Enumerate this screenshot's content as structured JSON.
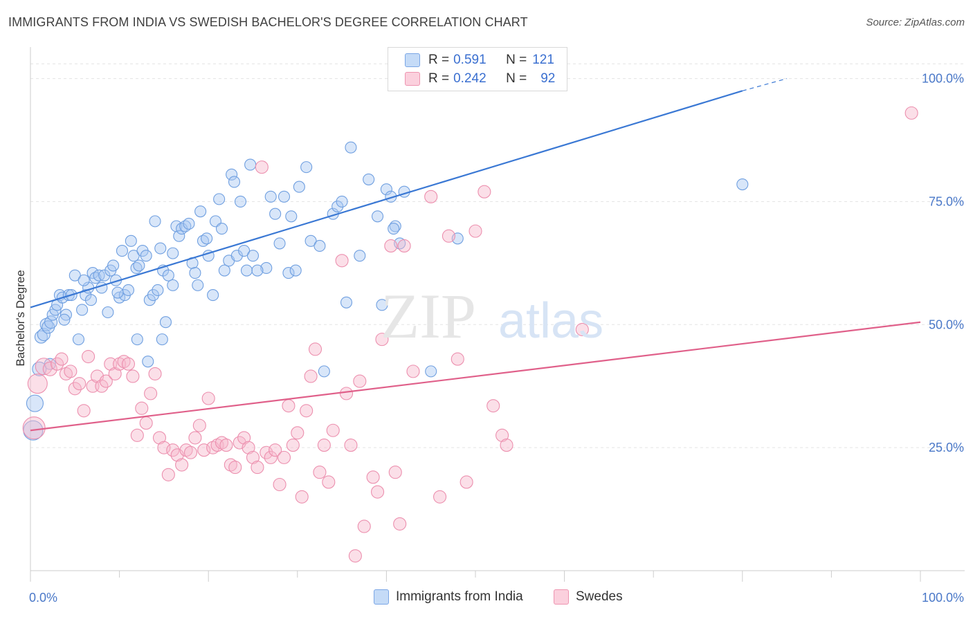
{
  "header": {
    "title": "IMMIGRANTS FROM INDIA VS SWEDISH BACHELOR'S DEGREE CORRELATION CHART",
    "source": "Source: ZipAtlas.com"
  },
  "watermark": {
    "part1": "ZIP",
    "part2": "atlas"
  },
  "legend_top": {
    "rows": [
      {
        "r_label": "R = ",
        "r_value": "0.591",
        "n_label": "N = ",
        "n_value": "121",
        "color": "#9dc0f0"
      },
      {
        "r_label": "R = ",
        "r_value": "0.242",
        "n_label": "N = ",
        "n_value": "92",
        "color": "#f5a9c0"
      }
    ]
  },
  "legend_bottom": {
    "items": [
      {
        "label": "Immigrants from India",
        "color": "#9dc0f0"
      },
      {
        "label": "Swedes",
        "color": "#f5a9c0"
      }
    ]
  },
  "chart_data": {
    "type": "scatter",
    "title": "IMMIGRANTS FROM INDIA VS SWEDISH BACHELOR'S DEGREE CORRELATION CHART",
    "xlabel": "",
    "ylabel": "Bachelor's Degree",
    "xlim": [
      0,
      100
    ],
    "ylim": [
      0,
      105
    ],
    "x_tick_labels": [
      "0.0%",
      "100.0%"
    ],
    "y_ticks": [
      25,
      50,
      75,
      100
    ],
    "y_tick_labels": [
      "25.0%",
      "50.0%",
      "75.0%",
      "100.0%"
    ],
    "grid": true,
    "legend_position": "top-center",
    "series": [
      {
        "name": "Immigrants from India",
        "color": "#3a78d4",
        "fill": "#a9c8f2",
        "r": 0.591,
        "n": 121,
        "trend": {
          "x0": 0,
          "y0": 53.5,
          "x1": 80,
          "y1": 97.5,
          "dash_x1": 85,
          "dash_y1": 100
        },
        "points": [
          [
            0.3,
            28.5,
            14
          ],
          [
            0.5,
            34,
            12
          ],
          [
            1,
            41,
            10
          ],
          [
            1.2,
            47.5,
            9
          ],
          [
            1.5,
            48,
            9
          ],
          [
            1.8,
            50,
            9
          ],
          [
            2,
            49.5,
            9
          ],
          [
            2.3,
            50.5,
            9
          ],
          [
            2.5,
            52,
            8
          ],
          [
            2.8,
            53,
            8
          ],
          [
            3,
            54,
            8
          ],
          [
            3.3,
            56,
            8
          ],
          [
            3.6,
            55.5,
            8
          ],
          [
            4,
            52,
            8
          ],
          [
            4.3,
            56,
            8
          ],
          [
            4.6,
            56,
            8
          ],
          [
            5,
            60,
            8
          ],
          [
            5.4,
            47,
            8
          ],
          [
            5.8,
            53,
            8
          ],
          [
            6.2,
            56,
            8
          ],
          [
            6.5,
            57.5,
            8
          ],
          [
            6.8,
            55,
            8
          ],
          [
            7,
            60.5,
            8
          ],
          [
            7.3,
            59.5,
            8
          ],
          [
            7.7,
            60,
            8
          ],
          [
            8,
            57.5,
            8
          ],
          [
            8.3,
            60,
            8
          ],
          [
            8.7,
            52.5,
            8
          ],
          [
            9,
            61,
            8
          ],
          [
            9.3,
            62,
            8
          ],
          [
            9.6,
            59,
            8
          ],
          [
            10,
            55.5,
            8
          ],
          [
            10.3,
            65,
            8
          ],
          [
            10.6,
            56,
            8
          ],
          [
            11,
            57,
            8
          ],
          [
            11.3,
            67,
            8
          ],
          [
            11.6,
            64,
            8
          ],
          [
            11.9,
            61.5,
            8
          ],
          [
            12.2,
            62,
            8
          ],
          [
            12.6,
            65,
            8
          ],
          [
            13,
            64,
            8
          ],
          [
            13.4,
            55,
            8
          ],
          [
            13.8,
            56,
            8
          ],
          [
            14,
            71,
            8
          ],
          [
            14.3,
            57,
            8
          ],
          [
            14.6,
            65.5,
            8
          ],
          [
            14.9,
            61,
            8
          ],
          [
            15.2,
            50.5,
            8
          ],
          [
            15.5,
            60,
            8
          ],
          [
            16,
            64.5,
            8
          ],
          [
            16.4,
            70,
            8
          ],
          [
            16.7,
            68,
            8
          ],
          [
            17,
            69.5,
            8
          ],
          [
            17.4,
            70,
            8
          ],
          [
            17.8,
            70.5,
            8
          ],
          [
            18.2,
            62.5,
            8
          ],
          [
            18.5,
            60.5,
            8
          ],
          [
            18.8,
            58,
            8
          ],
          [
            19.1,
            73,
            8
          ],
          [
            19.4,
            67,
            8
          ],
          [
            19.8,
            67.5,
            8
          ],
          [
            20,
            64,
            8
          ],
          [
            20.5,
            56,
            8
          ],
          [
            20.8,
            71,
            8
          ],
          [
            21.2,
            75.5,
            8
          ],
          [
            21.5,
            69.5,
            8
          ],
          [
            21.8,
            61,
            8
          ],
          [
            22.3,
            63,
            8
          ],
          [
            22.6,
            80.5,
            8
          ],
          [
            22.9,
            79,
            8
          ],
          [
            23.2,
            64,
            8
          ],
          [
            23.6,
            75,
            8
          ],
          [
            24,
            65,
            8
          ],
          [
            24.3,
            61,
            8
          ],
          [
            24.7,
            82.5,
            8
          ],
          [
            25,
            64,
            8
          ],
          [
            26.5,
            61.5,
            8
          ],
          [
            27,
            76,
            8
          ],
          [
            27.5,
            72.5,
            8
          ],
          [
            28,
            66.5,
            8
          ],
          [
            28.5,
            76,
            8
          ],
          [
            29,
            60.5,
            8
          ],
          [
            29.3,
            72,
            8
          ],
          [
            29.8,
            61,
            8
          ],
          [
            30.2,
            78,
            8
          ],
          [
            31,
            82,
            8
          ],
          [
            31.5,
            67,
            8
          ],
          [
            32.5,
            66,
            8
          ],
          [
            33,
            40.5,
            8
          ],
          [
            34,
            72.5,
            8
          ],
          [
            34.5,
            74,
            8
          ],
          [
            35,
            75,
            8
          ],
          [
            36,
            86,
            8
          ],
          [
            37,
            64,
            8
          ],
          [
            38,
            79.5,
            8
          ],
          [
            39,
            72,
            8
          ],
          [
            40,
            77.5,
            8
          ],
          [
            40.5,
            76,
            8
          ],
          [
            42,
            77,
            8
          ],
          [
            35.5,
            54.5,
            8
          ],
          [
            41,
            70,
            8
          ],
          [
            41.5,
            66.5,
            8
          ],
          [
            39.5,
            54,
            8
          ],
          [
            40.8,
            69.5,
            8
          ],
          [
            45,
            40.5,
            8
          ],
          [
            48,
            67.5,
            8
          ],
          [
            80,
            78.5,
            8
          ],
          [
            25.5,
            61,
            8
          ],
          [
            13.2,
            42.5,
            8
          ],
          [
            12,
            47,
            8
          ],
          [
            14.8,
            47,
            8
          ],
          [
            6,
            59,
            8
          ],
          [
            3.8,
            51,
            8
          ],
          [
            2.2,
            42,
            8
          ],
          [
            9.8,
            56.5,
            8
          ],
          [
            16,
            58,
            8
          ]
        ]
      },
      {
        "name": "Swedes",
        "color": "#e0608a",
        "fill": "#f7b8cb",
        "r": 0.242,
        "n": 92,
        "trend": {
          "x0": 0,
          "y0": 28.5,
          "x1": 100,
          "y1": 50.5
        },
        "points": [
          [
            0.4,
            29,
            16
          ],
          [
            0.8,
            38,
            14
          ],
          [
            1.5,
            41.5,
            12
          ],
          [
            2.2,
            41,
            10
          ],
          [
            3,
            42,
            9
          ],
          [
            3.5,
            43,
            9
          ],
          [
            4,
            40,
            9
          ],
          [
            4.5,
            40.5,
            9
          ],
          [
            5,
            37,
            9
          ],
          [
            5.5,
            38,
            9
          ],
          [
            6,
            32.5,
            9
          ],
          [
            6.5,
            43.5,
            9
          ],
          [
            7,
            37.5,
            9
          ],
          [
            7.5,
            39.5,
            9
          ],
          [
            8,
            37.5,
            9
          ],
          [
            8.5,
            38.5,
            9
          ],
          [
            9,
            42,
            9
          ],
          [
            9.5,
            40,
            9
          ],
          [
            10,
            42,
            9
          ],
          [
            10.5,
            42.5,
            9
          ],
          [
            11,
            42,
            9
          ],
          [
            11.5,
            39.5,
            9
          ],
          [
            12,
            27.5,
            9
          ],
          [
            12.5,
            33,
            9
          ],
          [
            13,
            30,
            9
          ],
          [
            13.5,
            36,
            9
          ],
          [
            14,
            40,
            9
          ],
          [
            14.5,
            27,
            9
          ],
          [
            15,
            25,
            9
          ],
          [
            15.5,
            19.5,
            9
          ],
          [
            16,
            24.5,
            9
          ],
          [
            16.5,
            23.5,
            9
          ],
          [
            17,
            21.5,
            9
          ],
          [
            17.5,
            24.5,
            9
          ],
          [
            18,
            24,
            9
          ],
          [
            18.5,
            27,
            9
          ],
          [
            19,
            29.5,
            9
          ],
          [
            19.5,
            24.5,
            9
          ],
          [
            20,
            35,
            9
          ],
          [
            20.5,
            25,
            9
          ],
          [
            21,
            25.5,
            9
          ],
          [
            21.5,
            26,
            9
          ],
          [
            22,
            25.5,
            9
          ],
          [
            22.5,
            21.5,
            9
          ],
          [
            23,
            21,
            9
          ],
          [
            23.5,
            26,
            9
          ],
          [
            24,
            27,
            9
          ],
          [
            24.5,
            25,
            9
          ],
          [
            25,
            23,
            9
          ],
          [
            25.5,
            21,
            9
          ],
          [
            26,
            82,
            9
          ],
          [
            26.5,
            24,
            9
          ],
          [
            27,
            23,
            9
          ],
          [
            27.5,
            24.5,
            9
          ],
          [
            28,
            17.5,
            9
          ],
          [
            28.5,
            23,
            9
          ],
          [
            29,
            33.5,
            9
          ],
          [
            29.5,
            25.5,
            9
          ],
          [
            30,
            28,
            9
          ],
          [
            30.5,
            15,
            9
          ],
          [
            31,
            32.5,
            9
          ],
          [
            31.5,
            39.5,
            9
          ],
          [
            32,
            45,
            9
          ],
          [
            32.5,
            20,
            9
          ],
          [
            33,
            25.5,
            9
          ],
          [
            33.5,
            18,
            9
          ],
          [
            34,
            28.5,
            9
          ],
          [
            35,
            63,
            9
          ],
          [
            35.5,
            36,
            9
          ],
          [
            36,
            25.5,
            9
          ],
          [
            36.5,
            3,
            9
          ],
          [
            37,
            38.5,
            9
          ],
          [
            37.5,
            9,
            9
          ],
          [
            38.5,
            19,
            9
          ],
          [
            39,
            16,
            9
          ],
          [
            39.5,
            47,
            9
          ],
          [
            40.5,
            66,
            9
          ],
          [
            41,
            20,
            9
          ],
          [
            41.5,
            9.5,
            9
          ],
          [
            42,
            66,
            9
          ],
          [
            43,
            40.5,
            9
          ],
          [
            45,
            76,
            9
          ],
          [
            46,
            15,
            9
          ],
          [
            47,
            68,
            9
          ],
          [
            48,
            43,
            9
          ],
          [
            49,
            18,
            9
          ],
          [
            50,
            69,
            9
          ],
          [
            51,
            77,
            9
          ],
          [
            52,
            33.5,
            9
          ],
          [
            53,
            27.5,
            9
          ],
          [
            53.5,
            25.5,
            9
          ],
          [
            62,
            49,
            9
          ],
          [
            99,
            93,
            9
          ]
        ]
      }
    ]
  }
}
